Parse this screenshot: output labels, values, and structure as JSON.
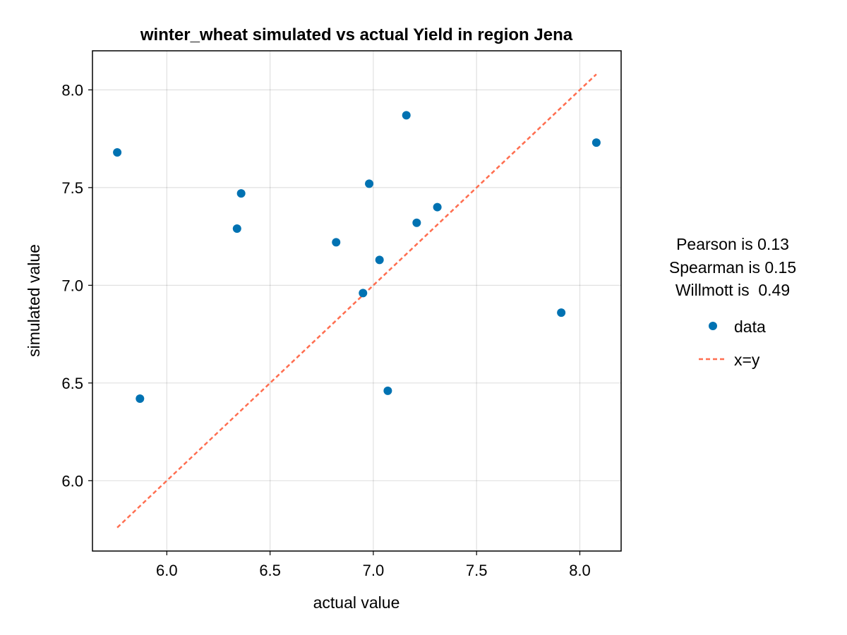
{
  "chart_data": {
    "type": "scatter",
    "title": "winter_wheat simulated vs actual Yield in region Jena",
    "xlabel": "actual value",
    "ylabel": "simulated value",
    "xlim": [
      5.64,
      8.2
    ],
    "ylim": [
      5.64,
      8.2
    ],
    "xticks": [
      6.0,
      6.5,
      7.0,
      7.5,
      8.0
    ],
    "yticks": [
      6.0,
      6.5,
      7.0,
      7.5,
      8.0
    ],
    "xtick_labels": [
      "6.0",
      "6.5",
      "7.0",
      "7.5",
      "8.0"
    ],
    "ytick_labels": [
      "6.0",
      "6.5",
      "7.0",
      "7.5",
      "8.0"
    ],
    "grid": true,
    "stats": [
      "Pearson is 0.13",
      "Spearman is 0.15",
      "Willmott is  0.49"
    ],
    "legend_position": "right",
    "series": [
      {
        "name": "data",
        "kind": "scatter",
        "color": "#0072b2",
        "points": [
          {
            "x": 5.76,
            "y": 7.68
          },
          {
            "x": 5.87,
            "y": 6.42
          },
          {
            "x": 6.34,
            "y": 7.29
          },
          {
            "x": 6.36,
            "y": 7.47
          },
          {
            "x": 6.82,
            "y": 7.22
          },
          {
            "x": 6.95,
            "y": 6.96
          },
          {
            "x": 6.98,
            "y": 7.52
          },
          {
            "x": 7.03,
            "y": 7.13
          },
          {
            "x": 7.07,
            "y": 6.46
          },
          {
            "x": 7.16,
            "y": 7.87
          },
          {
            "x": 7.21,
            "y": 7.32
          },
          {
            "x": 7.31,
            "y": 7.4
          },
          {
            "x": 7.91,
            "y": 6.86
          },
          {
            "x": 8.08,
            "y": 7.73
          }
        ]
      },
      {
        "name": "x=y",
        "kind": "line",
        "style": "dashed",
        "color": "#ff6e50",
        "points": [
          {
            "x": 5.76,
            "y": 5.76
          },
          {
            "x": 8.08,
            "y": 8.08
          }
        ]
      }
    ]
  }
}
